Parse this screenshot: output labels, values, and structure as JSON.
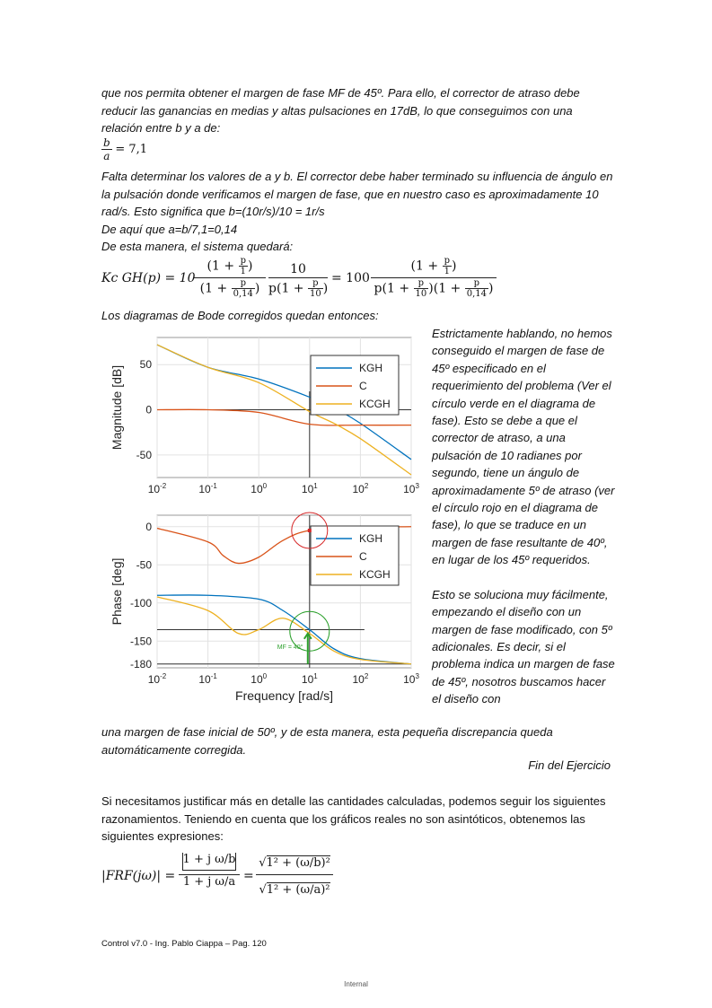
{
  "text": {
    "p1": "que nos permita obtener el margen de fase MF de 45º. Para ello, el corrector de atraso debe reducir las ganancias en medias y altas pulsaciones en 17dB, lo que conseguimos con una relación entre b y a de:",
    "eq_ratio": {
      "num": "b",
      "den": "a",
      "rhs": "= 7,1"
    },
    "p2": "Falta determinar los valores de a y b. El corrector debe haber terminado su influencia de ángulo en la pulsación donde verificamos el margen de fase, que en nuestro caso es aproximadamente 10 rad/s. Esto significa que b=(10r/s)/10 = 1r/s",
    "p3": "De aquí que a=b/7,1=0,14",
    "p4": "De esta manera, el sistema quedará:",
    "p5": "Los diagramas de Bode corregidos quedan entonces:",
    "sidebar1": "Estrictamente hablando, no hemos conseguido el margen de fase de 45º especificado en el requerimiento del problema (Ver el círculo verde en el diagrama de fase). Esto se debe a que el corrector de atraso, a una pulsación de 10 radianes por segundo, tiene un ángulo de aproximadamente 5º de atraso (ver el círculo rojo en el diagrama de fase), lo que se traduce en un margen de fase resultante de 40º, en lugar de los 45º requeridos.",
    "sidebar2": "Esto se soluciona muy fácilmente, empezando el diseño con un margen de fase modificado, con 5º adicionales. Es decir, si el problema indica un margen de fase de 45º, nosotros buscamos hacer el diseño con",
    "p6": "una margen de fase inicial de 50º, y de esta manera, esta pequeña discrepancia queda automáticamente corregida.",
    "fin": "Fin del Ejercicio",
    "p7": "Si necesitamos justificar más en detalle las cantidades calculadas, podemos seguir los siguientes razonamientos. Teniendo en cuenta que los gráficos reales no son asintóticos, obtenemos las siguientes expresiones:",
    "footer": "Control v7.0 - Ing. Pablo Ciappa – Pag. 120",
    "internal": "Internal"
  },
  "eq_system": {
    "lhs": "Kc  GH(p) = 10",
    "k1": "10",
    "eq": "= 100",
    "one_plus": "1 +",
    "p": "p",
    "one": "1",
    "ten": "10",
    "zero14": "0,14"
  },
  "eq_frf": {
    "lhs": "|FRF(jω)| =",
    "num_abs": "1 + j ω/b",
    "den_abs": "1 + j ω/a",
    "sqrt_num": "1² + (ω/b)²",
    "sqrt_den": "1² + (ω/a)²"
  },
  "colors": {
    "kgh": "#0072bd",
    "c": "#d95319",
    "kcgh": "#edb120",
    "green": "#2ca02c",
    "red": "#d62728"
  },
  "chart_data": [
    {
      "type": "line",
      "title": "",
      "xlabel": "",
      "ylabel": "Magnitude [dB]",
      "xscale": "log",
      "xlim": [
        0.01,
        1000
      ],
      "ylim": [
        -75,
        80
      ],
      "x_ticks": [
        "10-2",
        "10-1",
        "100",
        "101",
        "102",
        "103"
      ],
      "y_ticks": [
        "50",
        "0",
        "-50"
      ],
      "legend": [
        "KGH",
        "C",
        "KCGH"
      ],
      "legend_position": "top-right",
      "series": [
        {
          "name": "KGH",
          "x": [
            0.01,
            0.1,
            1,
            10,
            30,
            100,
            1000
          ],
          "y": [
            72,
            47,
            34,
            14,
            2,
            -15,
            -55
          ]
        },
        {
          "name": "C",
          "x": [
            0.01,
            0.1,
            1,
            10,
            100,
            1000
          ],
          "y": [
            0,
            0,
            -3,
            -16,
            -17,
            -17
          ]
        },
        {
          "name": "KCGH",
          "x": [
            0.01,
            0.1,
            1,
            10,
            30,
            100,
            1000
          ],
          "y": [
            72,
            47,
            30,
            -2,
            -15,
            -32,
            -72
          ]
        }
      ]
    },
    {
      "type": "line",
      "title": "",
      "xlabel": "Frequency [rad/s]",
      "ylabel": "Phase [deg]",
      "xscale": "log",
      "xlim": [
        0.01,
        1000
      ],
      "ylim": [
        -185,
        15
      ],
      "x_ticks": [
        "10-2",
        "10-1",
        "100",
        "101",
        "102",
        "103"
      ],
      "y_ticks": [
        "0",
        "-50",
        "-100",
        "-150",
        "-180"
      ],
      "legend": [
        "KGH",
        "C",
        "KCGH"
      ],
      "legend_position": "right",
      "annotation": "MF = 40°",
      "series": [
        {
          "name": "KGH",
          "x": [
            0.01,
            0.1,
            1,
            3,
            10,
            30,
            100,
            1000
          ],
          "y": [
            -90,
            -90,
            -95,
            -110,
            -135,
            -160,
            -173,
            -180
          ]
        },
        {
          "name": "C",
          "x": [
            0.01,
            0.1,
            0.2,
            0.4,
            1,
            3,
            10,
            100,
            1000
          ],
          "y": [
            -2,
            -20,
            -38,
            -48,
            -40,
            -18,
            -5,
            -1,
            0
          ]
        },
        {
          "name": "KCGH",
          "x": [
            0.01,
            0.1,
            0.4,
            1,
            3,
            10,
            30,
            100,
            1000
          ],
          "y": [
            -92,
            -110,
            -140,
            -135,
            -120,
            -140,
            -163,
            -174,
            -180
          ]
        }
      ]
    }
  ]
}
